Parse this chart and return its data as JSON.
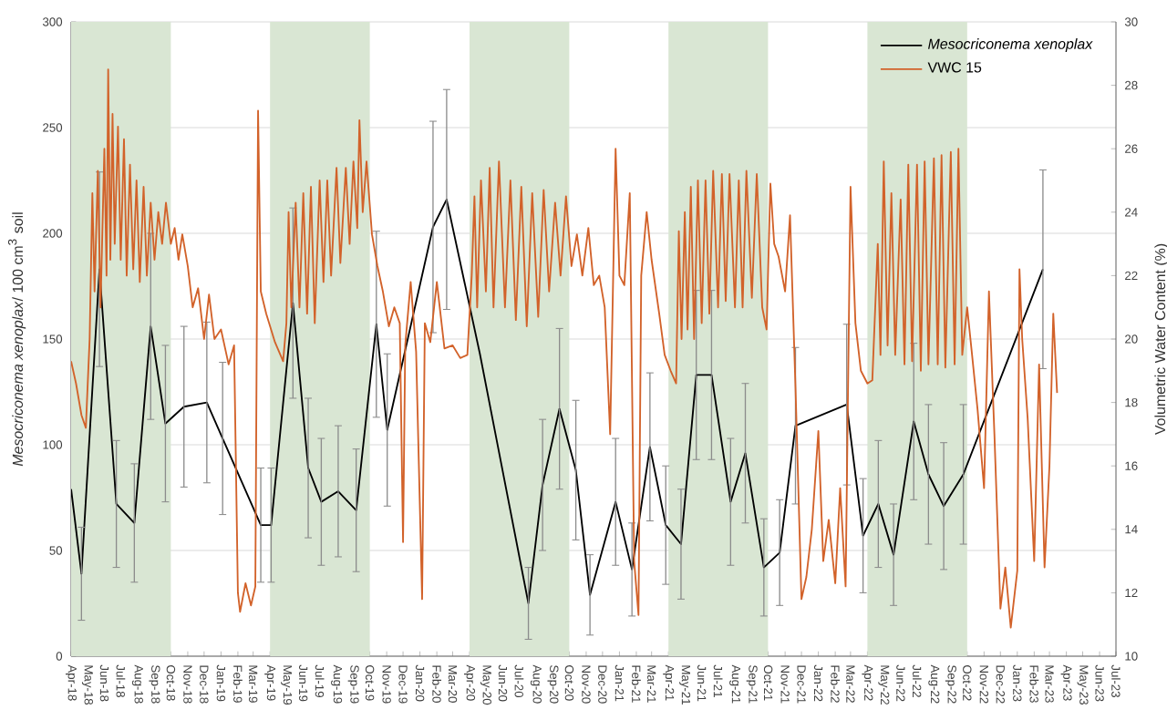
{
  "chart_data": {
    "type": "line",
    "ylabel": "*Mesocriconema xenoplax*/ 100 cm$^{3}$  soil",
    "y2label": "Volumetric Water Content (%)",
    "xlim": [
      "2018-04-01",
      "2023-07-01"
    ],
    "xticks": [
      {
        "value": "2018-04-01",
        "label": "Apr-18"
      },
      {
        "value": "2018-05-01",
        "label": "May-18"
      },
      {
        "value": "2018-06-01",
        "label": "Jun-18"
      },
      {
        "value": "2018-07-01",
        "label": "Jul-18"
      },
      {
        "value": "2018-08-01",
        "label": "Aug-18"
      },
      {
        "value": "2018-09-01",
        "label": "Sep-18"
      },
      {
        "value": "2018-10-01",
        "label": "Oct-18"
      },
      {
        "value": "2018-11-01",
        "label": "Nov-18"
      },
      {
        "value": "2018-12-01",
        "label": "Dec-18"
      },
      {
        "value": "2019-01-01",
        "label": "Jan-19"
      },
      {
        "value": "2019-02-01",
        "label": "Feb-19"
      },
      {
        "value": "2019-03-01",
        "label": "Mar-19"
      },
      {
        "value": "2019-04-01",
        "label": "Apr-19"
      },
      {
        "value": "2019-05-01",
        "label": "May-19"
      },
      {
        "value": "2019-06-01",
        "label": "Jun-19"
      },
      {
        "value": "2019-07-01",
        "label": "Jul-19"
      },
      {
        "value": "2019-08-01",
        "label": "Aug-19"
      },
      {
        "value": "2019-09-01",
        "label": "Sep-19"
      },
      {
        "value": "2019-10-01",
        "label": "Oct-19"
      },
      {
        "value": "2019-11-01",
        "label": "Nov-19"
      },
      {
        "value": "2019-12-01",
        "label": "Dec-19"
      },
      {
        "value": "2020-01-01",
        "label": "Jan-20"
      },
      {
        "value": "2020-02-01",
        "label": "Feb-20"
      },
      {
        "value": "2020-03-01",
        "label": "Mar-20"
      },
      {
        "value": "2020-04-01",
        "label": "Apr-20"
      },
      {
        "value": "2020-05-01",
        "label": "May-20"
      },
      {
        "value": "2020-06-01",
        "label": "Jun-20"
      },
      {
        "value": "2020-07-01",
        "label": "Jul-20"
      },
      {
        "value": "2020-08-01",
        "label": "Aug-20"
      },
      {
        "value": "2020-09-01",
        "label": "Sep-20"
      },
      {
        "value": "2020-10-01",
        "label": "Oct-20"
      },
      {
        "value": "2020-11-01",
        "label": "Nov-20"
      },
      {
        "value": "2020-12-01",
        "label": "Dec-20"
      },
      {
        "value": "2021-01-01",
        "label": "Jan-21"
      },
      {
        "value": "2021-02-01",
        "label": "Feb-21"
      },
      {
        "value": "2021-03-01",
        "label": "Mar-21"
      },
      {
        "value": "2021-04-01",
        "label": "Apr-21"
      },
      {
        "value": "2021-05-01",
        "label": "May-21"
      },
      {
        "value": "2021-06-01",
        "label": "Jun-21"
      },
      {
        "value": "2021-07-01",
        "label": "Jul-21"
      },
      {
        "value": "2021-08-01",
        "label": "Aug-21"
      },
      {
        "value": "2021-09-01",
        "label": "Sep-21"
      },
      {
        "value": "2021-10-01",
        "label": "Oct-21"
      },
      {
        "value": "2021-11-01",
        "label": "Nov-21"
      },
      {
        "value": "2021-12-01",
        "label": "Dec-21"
      },
      {
        "value": "2022-01-01",
        "label": "Jan-22"
      },
      {
        "value": "2022-02-01",
        "label": "Feb-22"
      },
      {
        "value": "2022-03-01",
        "label": "Mar-22"
      },
      {
        "value": "2022-04-01",
        "label": "Apr-22"
      },
      {
        "value": "2022-05-01",
        "label": "May-22"
      },
      {
        "value": "2022-06-01",
        "label": "Jun-22"
      },
      {
        "value": "2022-07-01",
        "label": "Jul-22"
      },
      {
        "value": "2022-08-01",
        "label": "Aug-22"
      },
      {
        "value": "2022-09-01",
        "label": "Sep-22"
      },
      {
        "value": "2022-10-01",
        "label": "Oct-22"
      },
      {
        "value": "2022-11-01",
        "label": "Nov-22"
      },
      {
        "value": "2022-12-01",
        "label": "Dec-22"
      },
      {
        "value": "2023-01-01",
        "label": "Jan-23"
      },
      {
        "value": "2023-02-01",
        "label": "Feb-23"
      },
      {
        "value": "2023-03-01",
        "label": "Mar-23"
      },
      {
        "value": "2023-04-01",
        "label": "Apr-23"
      },
      {
        "value": "2023-05-01",
        "label": "May-23"
      },
      {
        "value": "2023-06-01",
        "label": "Jun-23"
      },
      {
        "value": "2023-07-01",
        "label": "Jul-23"
      }
    ],
    "ylim": [
      0,
      300
    ],
    "yticks": [
      0,
      50,
      100,
      150,
      200,
      250,
      300
    ],
    "y2lim": [
      10,
      30
    ],
    "y2ticks": [
      10,
      12,
      14,
      16,
      18,
      20,
      22,
      24,
      26,
      28,
      30
    ],
    "grid": "y",
    "legend": "top right",
    "marker": "none",
    "line_style": "solid",
    "bands": [
      {
        "axis": "x",
        "from": "2018-04-01",
        "to": "2018-10-01",
        "color": "#d9e6d3"
      },
      {
        "axis": "x",
        "from": "2019-04-01",
        "to": "2019-10-01",
        "color": "#d9e6d3"
      },
      {
        "axis": "x",
        "from": "2020-04-01",
        "to": "2020-10-01",
        "color": "#d9e6d3"
      },
      {
        "axis": "x",
        "from": "2021-04-01",
        "to": "2021-10-01",
        "color": "#d9e6d3"
      },
      {
        "axis": "x",
        "from": "2022-04-01",
        "to": "2022-10-01",
        "color": "#d9e6d3"
      }
    ],
    "series": [
      {
        "name": "*Mesocriconema xenoplax*",
        "color": "#000000",
        "x": [
          "2018-04-01",
          "2018-04-20",
          "2018-05-23",
          "2018-06-23",
          "2018-07-26",
          "2018-08-25",
          "2018-09-21",
          "2018-10-25",
          "2018-12-06",
          "2019-01-04",
          "2019-03-15",
          "2019-04-03",
          "2019-05-13",
          "2019-06-10",
          "2019-07-04",
          "2019-08-04",
          "2019-09-06",
          "2019-10-13",
          "2019-11-02",
          "2020-01-25",
          "2020-02-19",
          "2020-04-20",
          "2020-07-18",
          "2020-08-13",
          "2020-09-13",
          "2020-10-13",
          "2020-11-08",
          "2020-12-25",
          "2021-01-24",
          "2021-02-26",
          "2021-03-27",
          "2021-04-24",
          "2021-05-22",
          "2021-06-19",
          "2021-07-24",
          "2021-08-20",
          "2021-09-23",
          "2021-10-22",
          "2021-11-20",
          "2022-02-22",
          "2022-03-24",
          "2022-04-21",
          "2022-05-19",
          "2022-06-25",
          "2022-07-22",
          "2022-08-19",
          "2022-09-24",
          "2023-02-17"
        ],
        "values": [
          79,
          39,
          183,
          72,
          63,
          156,
          110,
          118,
          120,
          103,
          62,
          62,
          167,
          89,
          73,
          78,
          69,
          157,
          107,
          203,
          216,
          143,
          25,
          81,
          117,
          88,
          29,
          73,
          41,
          99,
          62,
          53,
          133,
          133,
          73,
          96,
          42,
          49,
          109,
          119,
          57,
          72,
          48,
          111,
          86,
          71,
          86,
          183
        ],
        "errors": [
          null,
          22,
          46,
          30,
          28,
          44,
          37,
          38,
          38,
          36,
          27,
          27,
          45,
          33,
          30,
          31,
          29,
          44,
          36,
          50,
          52,
          null,
          17,
          31,
          38,
          33,
          19,
          30,
          22,
          35,
          28,
          26,
          40,
          40,
          30,
          33,
          23,
          25,
          37,
          38,
          27,
          30,
          24,
          37,
          33,
          30,
          33,
          47
        ]
      },
      {
        "name": "VWC 15",
        "color": "#d2622a",
        "axis": "y2",
        "x": [
          "2018-04-01",
          "2018-04-10",
          "2018-04-20",
          "2018-04-28",
          "2018-05-05",
          "2018-05-10",
          "2018-05-14",
          "2018-05-20",
          "2018-05-25",
          "2018-06-01",
          "2018-06-05",
          "2018-06-08",
          "2018-06-12",
          "2018-06-16",
          "2018-06-20",
          "2018-06-26",
          "2018-07-01",
          "2018-07-07",
          "2018-07-12",
          "2018-07-18",
          "2018-07-24",
          "2018-07-30",
          "2018-08-05",
          "2018-08-12",
          "2018-08-18",
          "2018-08-25",
          "2018-09-01",
          "2018-09-08",
          "2018-09-15",
          "2018-09-22",
          "2018-10-01",
          "2018-10-08",
          "2018-10-15",
          "2018-10-22",
          "2018-11-01",
          "2018-11-10",
          "2018-11-20",
          "2018-12-01",
          "2018-12-10",
          "2018-12-20",
          "2019-01-01",
          "2019-01-15",
          "2019-01-25",
          "2019-02-01",
          "2019-02-05",
          "2019-02-15",
          "2019-02-25",
          "2019-03-05",
          "2019-03-10",
          "2019-03-15",
          "2019-03-25",
          "2019-04-10",
          "2019-04-25",
          "2019-05-01",
          "2019-05-05",
          "2019-05-10",
          "2019-05-18",
          "2019-05-25",
          "2019-06-01",
          "2019-06-08",
          "2019-06-15",
          "2019-06-22",
          "2019-07-01",
          "2019-07-08",
          "2019-07-15",
          "2019-07-22",
          "2019-08-01",
          "2019-08-08",
          "2019-08-18",
          "2019-08-25",
          "2019-09-01",
          "2019-09-08",
          "2019-09-12",
          "2019-09-18",
          "2019-09-25",
          "2019-10-05",
          "2019-10-15",
          "2019-10-25",
          "2019-11-05",
          "2019-11-15",
          "2019-11-25",
          "2019-12-01",
          "2019-12-05",
          "2019-12-15",
          "2019-12-25",
          "2020-01-05",
          "2020-01-10",
          "2020-01-20",
          "2020-02-01",
          "2020-02-15",
          "2020-03-01",
          "2020-03-15",
          "2020-03-28",
          "2020-04-05",
          "2020-04-10",
          "2020-04-15",
          "2020-04-22",
          "2020-05-01",
          "2020-05-08",
          "2020-05-15",
          "2020-05-25",
          "2020-06-05",
          "2020-06-15",
          "2020-06-25",
          "2020-07-05",
          "2020-07-15",
          "2020-07-25",
          "2020-08-05",
          "2020-08-15",
          "2020-08-25",
          "2020-09-05",
          "2020-09-15",
          "2020-09-25",
          "2020-10-05",
          "2020-10-15",
          "2020-10-25",
          "2020-11-05",
          "2020-11-15",
          "2020-11-25",
          "2020-12-05",
          "2020-12-15",
          "2020-12-25",
          "2021-01-01",
          "2021-01-10",
          "2021-01-20",
          "2021-01-28",
          "2021-02-05",
          "2021-02-10",
          "2021-02-20",
          "2021-03-01",
          "2021-03-15",
          "2021-03-25",
          "2021-04-05",
          "2021-04-15",
          "2021-04-20",
          "2021-04-25",
          "2021-05-01",
          "2021-05-06",
          "2021-05-12",
          "2021-05-18",
          "2021-05-25",
          "2021-06-01",
          "2021-06-08",
          "2021-06-15",
          "2021-06-22",
          "2021-07-01",
          "2021-07-08",
          "2021-07-15",
          "2021-07-22",
          "2021-08-01",
          "2021-08-08",
          "2021-08-15",
          "2021-08-22",
          "2021-09-01",
          "2021-09-10",
          "2021-09-20",
          "2021-09-28",
          "2021-10-05",
          "2021-10-12",
          "2021-10-20",
          "2021-11-01",
          "2021-11-10",
          "2021-11-20",
          "2021-12-01",
          "2021-12-10",
          "2021-12-20",
          "2022-01-01",
          "2022-01-10",
          "2022-01-20",
          "2022-02-01",
          "2022-02-10",
          "2022-02-20",
          "2022-03-01",
          "2022-03-10",
          "2022-03-20",
          "2022-04-01",
          "2022-04-10",
          "2022-04-20",
          "2022-04-25",
          "2022-05-01",
          "2022-05-08",
          "2022-05-15",
          "2022-05-22",
          "2022-06-01",
          "2022-06-08",
          "2022-06-15",
          "2022-06-22",
          "2022-07-01",
          "2022-07-08",
          "2022-07-15",
          "2022-07-22",
          "2022-08-01",
          "2022-08-08",
          "2022-08-15",
          "2022-08-22",
          "2022-09-01",
          "2022-09-08",
          "2022-09-15",
          "2022-09-22",
          "2022-10-01",
          "2022-10-10",
          "2022-10-20",
          "2022-11-01",
          "2022-11-10",
          "2022-11-20",
          "2022-12-01",
          "2022-12-10",
          "2022-12-20",
          "2023-01-01",
          "2023-01-05",
          "2023-01-10",
          "2023-01-20",
          "2023-02-01",
          "2023-02-10",
          "2023-02-20",
          "2023-03-01",
          "2023-03-08",
          "2023-03-15"
        ],
        "values": [
          19.3,
          18.6,
          17.6,
          17.2,
          20.0,
          24.6,
          21.5,
          25.3,
          21.0,
          26.0,
          22.0,
          28.5,
          22.5,
          27.1,
          23.0,
          26.7,
          22.5,
          26.3,
          22.0,
          25.5,
          22.2,
          25.0,
          21.8,
          24.8,
          22.0,
          24.3,
          22.5,
          24.0,
          23.0,
          24.3,
          23.0,
          23.5,
          22.5,
          23.3,
          22.3,
          21.0,
          21.6,
          20.0,
          21.4,
          20.0,
          20.3,
          19.2,
          19.8,
          12.0,
          11.4,
          12.3,
          11.6,
          12.2,
          27.2,
          21.5,
          20.8,
          19.9,
          19.3,
          20.5,
          24.0,
          21.0,
          24.3,
          21.0,
          24.6,
          20.8,
          24.8,
          20.5,
          25.0,
          21.8,
          25.0,
          22.0,
          25.4,
          22.4,
          25.4,
          23.0,
          25.6,
          23.5,
          26.9,
          24.0,
          25.6,
          23.3,
          22.3,
          21.5,
          20.4,
          21.0,
          20.5,
          13.6,
          19.8,
          21.8,
          19.6,
          11.8,
          20.5,
          19.9,
          21.8,
          19.7,
          19.8,
          19.4,
          19.5,
          22.0,
          24.5,
          21.0,
          25.0,
          21.5,
          25.4,
          21.0,
          25.6,
          21.0,
          25.0,
          20.6,
          24.8,
          20.4,
          24.6,
          20.7,
          24.7,
          21.5,
          24.3,
          22.0,
          24.5,
          22.3,
          23.3,
          22.0,
          23.5,
          21.7,
          22.0,
          21.0,
          17.0,
          26.0,
          22.0,
          21.7,
          24.6,
          13.0,
          11.3,
          22.0,
          24.0,
          22.5,
          20.8,
          19.5,
          19.0,
          18.6,
          23.4,
          20.0,
          24.0,
          20.3,
          24.8,
          20.0,
          25.0,
          20.5,
          25.0,
          20.8,
          25.3,
          21.0,
          25.2,
          21.2,
          25.2,
          21.0,
          25.0,
          21.0,
          25.3,
          21.3,
          25.2,
          21.0,
          20.3,
          24.9,
          23.0,
          22.6,
          21.5,
          23.9,
          18.5,
          11.8,
          12.5,
          14.0,
          17.1,
          13.0,
          14.3,
          12.3,
          15.3,
          12.2,
          24.8,
          20.5,
          19.0,
          18.6,
          18.7,
          23.0,
          19.5,
          25.6,
          19.8,
          24.6,
          19.5,
          24.4,
          19.2,
          25.5,
          19.3,
          25.5,
          19.0,
          25.6,
          19.2,
          25.7,
          19.2,
          25.8,
          19.1,
          25.9,
          19.2,
          26.0,
          19.5,
          21.0,
          19.5,
          17.8,
          15.3,
          21.5,
          17.0,
          11.5,
          12.8,
          10.9,
          12.7,
          22.2,
          20.0,
          17.5,
          13.0,
          19.2,
          12.8,
          16.0,
          20.8,
          18.3
        ]
      }
    ]
  }
}
